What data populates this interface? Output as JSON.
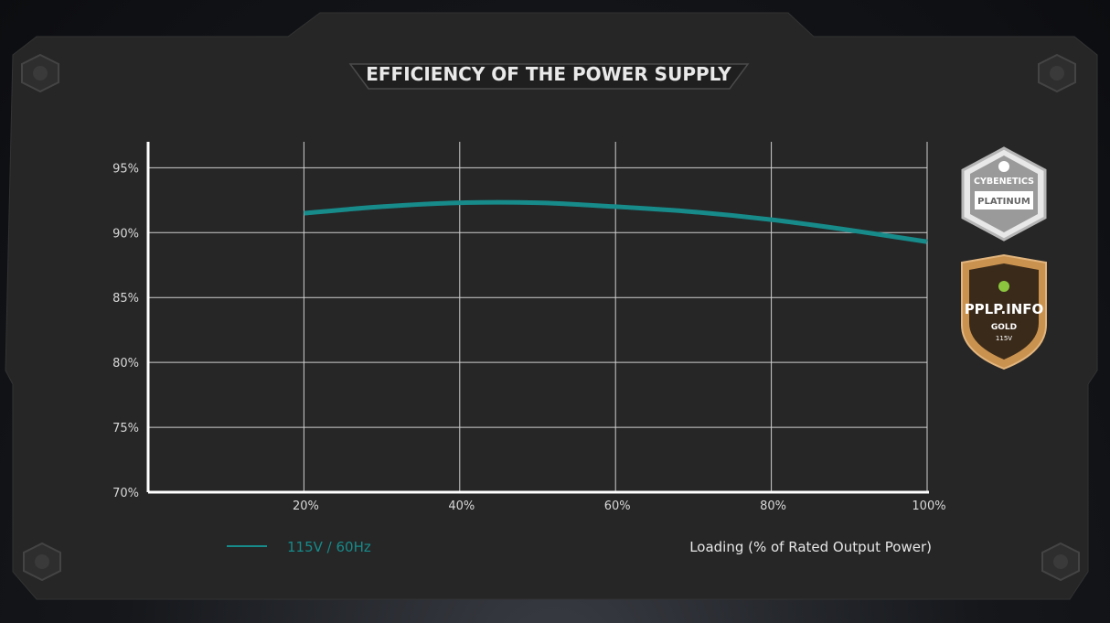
{
  "chart_data": {
    "type": "line",
    "title": "EFFICIENCY OF THE POWER SUPPLY",
    "xlabel": "Loading (% of Rated Output Power)",
    "ylabel": "",
    "x_ticks": [
      "20%",
      "40%",
      "60%",
      "80%",
      "100%"
    ],
    "y_ticks": [
      "70%",
      "75%",
      "80%",
      "85%",
      "90%",
      "95%"
    ],
    "xlim": [
      0,
      100
    ],
    "ylim": [
      70,
      97
    ],
    "grid": true,
    "legend_position": "bottom-left",
    "series": [
      {
        "name": "115V / 60Hz",
        "color": "#178a8a",
        "x": [
          20,
          30,
          40,
          50,
          60,
          70,
          80,
          90,
          100
        ],
        "y": [
          91.5,
          92.0,
          92.3,
          92.3,
          92.0,
          91.6,
          91.0,
          90.2,
          89.3
        ]
      }
    ]
  },
  "badges": {
    "cybenetics": {
      "brand": "CYBENETICS",
      "level": "PLATINUM"
    },
    "pplp": {
      "brand": "PPLP.INFO",
      "level": "GOLD",
      "voltage": "115V"
    }
  },
  "colors": {
    "panel": "#262626",
    "grid": "#d0d0d0",
    "axis": "#ffffff",
    "accent": "#178a8a",
    "gold": "#c9924f"
  }
}
